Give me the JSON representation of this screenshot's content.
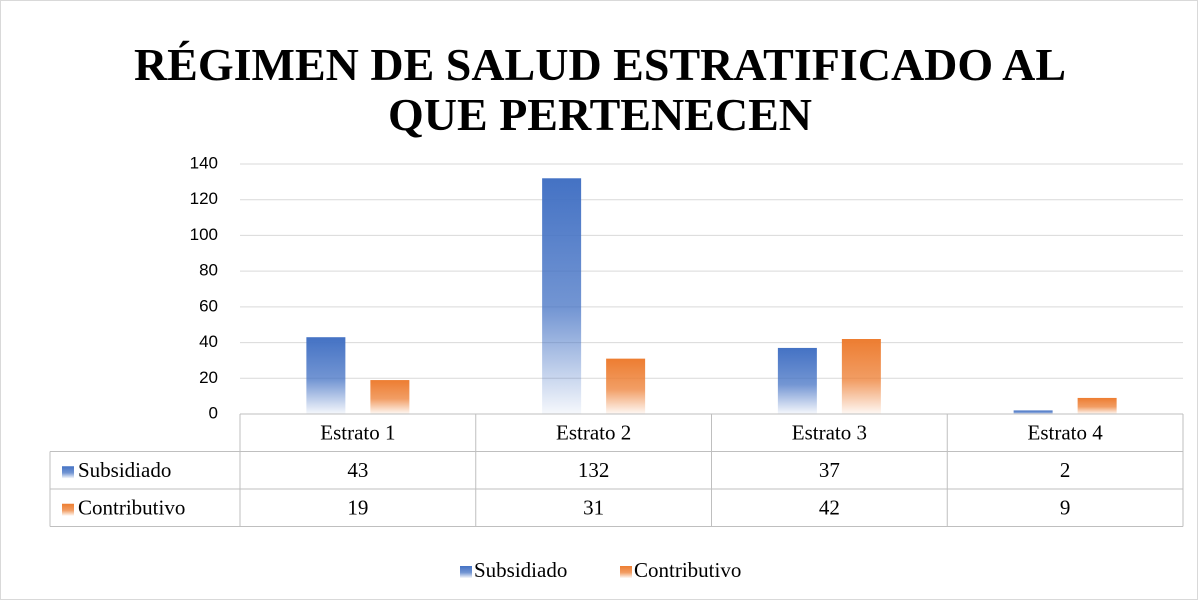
{
  "chart_data": {
    "type": "bar",
    "title": "RÉGIMEN DE SALUD ESTRATIFICADO AL QUE PERTENECEN",
    "categories": [
      "Estrato 1",
      "Estrato 2",
      "Estrato 3",
      "Estrato 4"
    ],
    "series": [
      {
        "name": "Subsidiado",
        "color": "#4472c4",
        "values": [
          43,
          132,
          37,
          2
        ]
      },
      {
        "name": "Contributivo",
        "color": "#ed7d31",
        "values": [
          19,
          31,
          42,
          9
        ]
      }
    ],
    "ylim": [
      0,
      140
    ],
    "yticks": [
      0,
      20,
      40,
      60,
      80,
      100,
      120,
      140
    ],
    "grid": true,
    "legend": "bottom",
    "data_table": true
  }
}
